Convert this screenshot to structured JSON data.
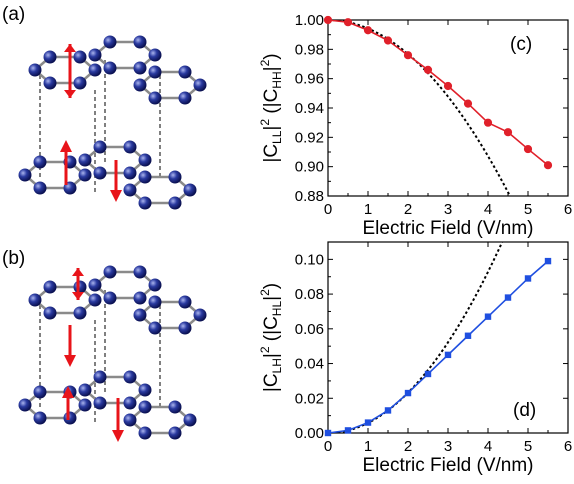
{
  "panels": {
    "a": "(a)",
    "b": "(b)"
  },
  "chart_data": [
    {
      "type": "line",
      "panel_label": "(c)",
      "xlabel": "Electric Field (V/nm)",
      "ylabel_main": "|C",
      "ylabel_sub": "LL",
      "ylabel_mid": "|",
      "ylabel_sup": "2",
      "ylabel_paren_open": " (|C",
      "ylabel_sub2": "HH",
      "ylabel_paren_mid": "|",
      "ylabel_sup2": "2",
      "ylabel_paren_close": ")",
      "xlim": [
        0,
        6
      ],
      "ylim": [
        0.88,
        1.0
      ],
      "xticks": [
        0,
        1,
        2,
        3,
        4,
        5,
        6
      ],
      "yticks": [
        0.88,
        0.9,
        0.92,
        0.94,
        0.96,
        0.98,
        1.0
      ],
      "ytick_labels": [
        "0.88",
        "0.90",
        "0.92",
        "0.94",
        "0.96",
        "0.98",
        "1.00"
      ],
      "series": [
        {
          "color": "#e0202a",
          "marker": "circle",
          "x": [
            0,
            0.5,
            1.0,
            1.5,
            2.0,
            2.5,
            3.0,
            3.5,
            4.0,
            4.5,
            5.0,
            5.5
          ],
          "y": [
            1.0,
            0.9985,
            0.993,
            0.986,
            0.976,
            0.966,
            0.955,
            0.943,
            0.93,
            0.9235,
            0.912,
            0.901
          ]
        }
      ],
      "fit": {
        "style": "dotted",
        "color": "#000000",
        "type": "quadratic",
        "a": 1.0,
        "b": -0.0058
      }
    },
    {
      "type": "line",
      "panel_label": "(d)",
      "xlabel": "Electric Field (V/nm)",
      "ylabel_main": "|C",
      "ylabel_sub": "LH",
      "ylabel_mid": "|",
      "ylabel_sup": "2",
      "ylabel_paren_open": " (|C",
      "ylabel_sub2": "HL",
      "ylabel_paren_mid": "|",
      "ylabel_sup2": "2",
      "ylabel_paren_close": ")",
      "xlim": [
        0,
        6
      ],
      "ylim": [
        0,
        0.11
      ],
      "xticks": [
        0,
        1,
        2,
        3,
        4,
        5,
        6
      ],
      "yticks": [
        0.0,
        0.02,
        0.04,
        0.06,
        0.08,
        0.1
      ],
      "ytick_labels": [
        "0.00",
        "0.02",
        "0.04",
        "0.06",
        "0.08",
        "0.10"
      ],
      "series": [
        {
          "color": "#1f4fe0",
          "marker": "square",
          "x": [
            0,
            0.5,
            1.0,
            1.5,
            2.0,
            2.5,
            3.0,
            3.5,
            4.0,
            4.5,
            5.0,
            5.5
          ],
          "y": [
            0.0,
            0.0015,
            0.006,
            0.013,
            0.023,
            0.034,
            0.045,
            0.056,
            0.067,
            0.078,
            0.089,
            0.099
          ]
        }
      ],
      "fit": {
        "style": "dotted",
        "color": "#000000",
        "type": "quadratic",
        "a": 0.0,
        "b": 0.0058
      }
    }
  ]
}
